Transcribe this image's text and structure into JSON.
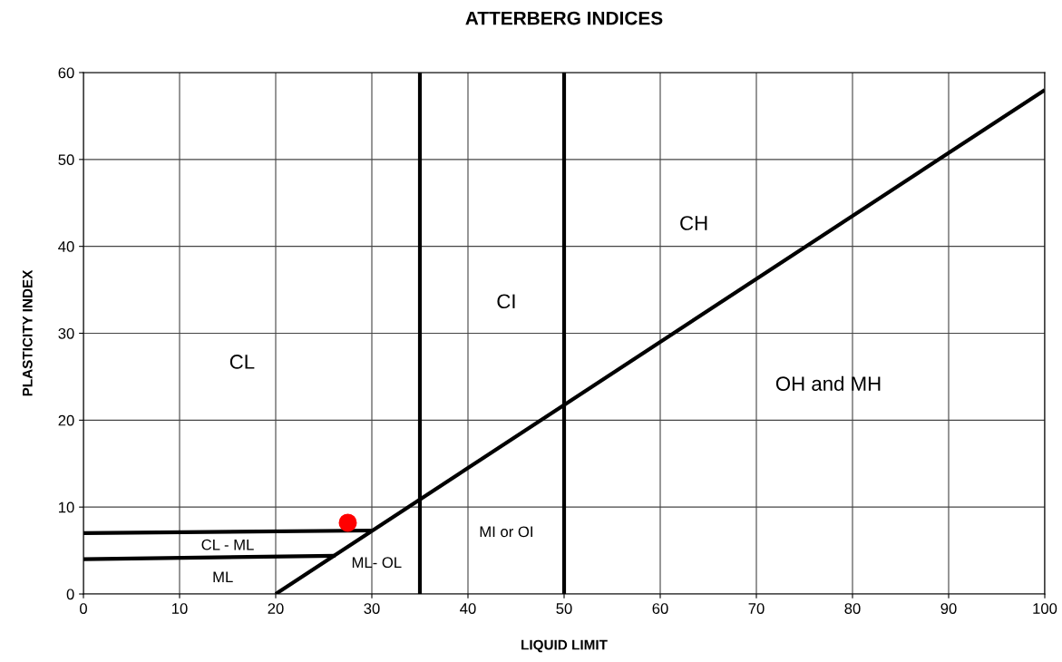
{
  "chart_data": {
    "type": "line",
    "title": "ATTERBERG INDICES",
    "xlabel": "LIQUID LIMIT",
    "ylabel": "PLASTICITY INDEX",
    "xlim": [
      0,
      100
    ],
    "xticks": [
      0,
      10,
      20,
      30,
      40,
      50,
      60,
      70,
      80,
      90,
      100
    ],
    "ylim": [
      0,
      60
    ],
    "yticks": [
      0,
      10,
      20,
      30,
      40,
      50,
      60
    ],
    "grid": true,
    "legend": false,
    "series": [
      {
        "color": "#000000",
        "x": [
          20,
          100
        ],
        "values": [
          0,
          58
        ]
      },
      {
        "color": "#000000",
        "x": [
          35,
          35
        ],
        "values": [
          0,
          60
        ]
      },
      {
        "color": "#000000",
        "x": [
          50,
          50
        ],
        "values": [
          0,
          60
        ]
      },
      {
        "color": "#000000",
        "x": [
          0,
          30
        ],
        "values": [
          7,
          7.3
        ]
      },
      {
        "color": "#000000",
        "x": [
          0,
          26.2
        ],
        "values": [
          4,
          4.4
        ]
      },
      {
        "type": "scatter",
        "color": "#ff0000",
        "x": [
          27.5
        ],
        "values": [
          8.2
        ]
      }
    ],
    "annotations": [
      "CL",
      "CI",
      "CH",
      "OH and MH",
      "MI or OI",
      "ML- OL",
      "CL - ML",
      "ML"
    ]
  }
}
